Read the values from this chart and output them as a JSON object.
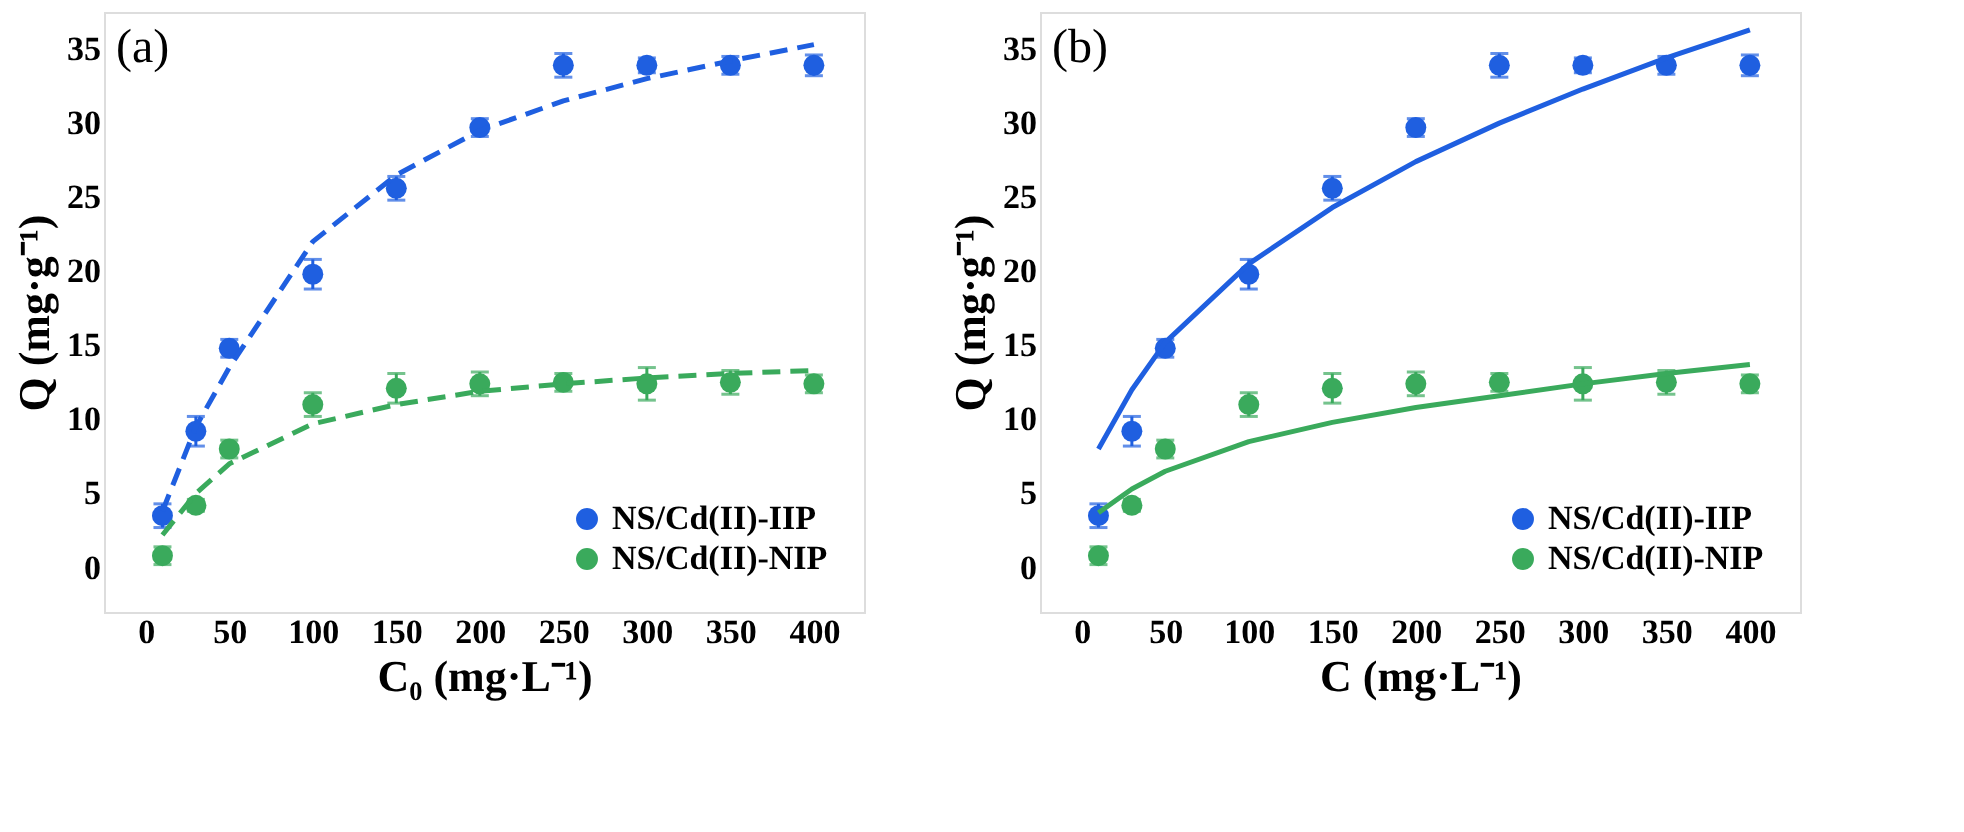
{
  "chart_data": [
    {
      "type": "scatter",
      "annotations": [
        "(a)"
      ],
      "xlabel": "C₀ (mg·L⁻¹)",
      "ylabel": "Q (mg·g⁻¹)",
      "xlim": [
        -25,
        430
      ],
      "ylim": [
        -3,
        37.5
      ],
      "xticks": [
        0,
        50,
        100,
        150,
        200,
        250,
        300,
        350,
        400
      ],
      "yticks": [
        0,
        5,
        10,
        15,
        20,
        25,
        30,
        35
      ],
      "grid": false,
      "legend": "bottom right",
      "x": [
        10,
        30,
        50,
        100,
        150,
        200,
        250,
        300,
        350,
        400
      ],
      "series": [
        {
          "name": "NS/Cd(II)-IIP",
          "marker": "circle",
          "color": "#1f5fe0",
          "values": [
            3.5,
            9.2,
            14.8,
            19.8,
            25.6,
            29.7,
            33.9,
            33.9,
            33.9,
            33.9
          ],
          "errors": [
            0.8,
            1,
            0.6,
            1,
            0.8,
            0.6,
            0.8,
            0.5,
            0.6,
            0.7
          ]
        },
        {
          "name": "NS/Cd(II)-NIP",
          "marker": "circle",
          "color": "#3aaa5c",
          "values": [
            0.8,
            4.2,
            8.0,
            11.0,
            12.1,
            12.4,
            12.5,
            12.4,
            12.5,
            12.4
          ],
          "errors": [
            0.6,
            0.4,
            0.6,
            0.8,
            1,
            0.8,
            0.6,
            1.1,
            0.8,
            0.6
          ]
        },
        {
          "type": "line",
          "line_style": "dashed",
          "marker": "none",
          "color": "#1f5fe0",
          "x": [
            10,
            30,
            50,
            100,
            150,
            200,
            250,
            300,
            350,
            400
          ],
          "values": [
            3.8,
            9.5,
            13.5,
            22,
            26.5,
            29.5,
            31.5,
            33,
            34.2,
            35.3
          ]
        },
        {
          "type": "line",
          "line_style": "dashed",
          "marker": "none",
          "color": "#3aaa5c",
          "x": [
            10,
            30,
            50,
            100,
            150,
            200,
            250,
            300,
            350,
            400
          ],
          "values": [
            2.2,
            5,
            7,
            9.7,
            11,
            11.9,
            12.4,
            12.8,
            13.1,
            13.3
          ]
        }
      ]
    },
    {
      "type": "scatter",
      "annotations": [
        "(b)"
      ],
      "xlabel": "C (mg·L⁻¹)",
      "ylabel": "Q (mg·g⁻¹)",
      "xlim": [
        -25,
        430
      ],
      "ylim": [
        -3,
        37.5
      ],
      "xticks": [
        0,
        50,
        100,
        150,
        200,
        250,
        300,
        350,
        400
      ],
      "yticks": [
        0,
        5,
        10,
        15,
        20,
        25,
        30,
        35
      ],
      "grid": false,
      "legend": "bottom right",
      "x": [
        10,
        30,
        50,
        100,
        150,
        200,
        250,
        300,
        350,
        400
      ],
      "series": [
        {
          "name": "NS/Cd(II)-IIP",
          "marker": "circle",
          "color": "#1f5fe0",
          "values": [
            3.5,
            9.2,
            14.8,
            19.8,
            25.6,
            29.7,
            33.9,
            33.9,
            33.9,
            33.9
          ],
          "errors": [
            0.8,
            1,
            0.6,
            1,
            0.8,
            0.6,
            0.8,
            0.5,
            0.6,
            0.7
          ]
        },
        {
          "name": "NS/Cd(II)-NIP",
          "marker": "circle",
          "color": "#3aaa5c",
          "values": [
            0.8,
            4.2,
            8.0,
            11.0,
            12.1,
            12.4,
            12.5,
            12.4,
            12.5,
            12.4
          ],
          "errors": [
            0.6,
            0.4,
            0.6,
            0.8,
            1,
            0.8,
            0.6,
            1.1,
            0.8,
            0.6
          ]
        },
        {
          "type": "line",
          "line_style": "solid",
          "marker": "none",
          "color": "#1f5fe0",
          "x": [
            10,
            30,
            50,
            100,
            150,
            200,
            250,
            300,
            350,
            400
          ],
          "values": [
            8,
            12,
            15.2,
            20.5,
            24.3,
            27.4,
            30,
            32.3,
            34.4,
            36.3
          ]
        },
        {
          "type": "line",
          "line_style": "solid",
          "marker": "none",
          "color": "#3aaa5c",
          "x": [
            10,
            30,
            50,
            100,
            150,
            200,
            250,
            300,
            350,
            400
          ],
          "values": [
            3.7,
            5.3,
            6.5,
            8.5,
            9.8,
            10.8,
            11.6,
            12.4,
            13.1,
            13.7
          ]
        }
      ]
    }
  ]
}
